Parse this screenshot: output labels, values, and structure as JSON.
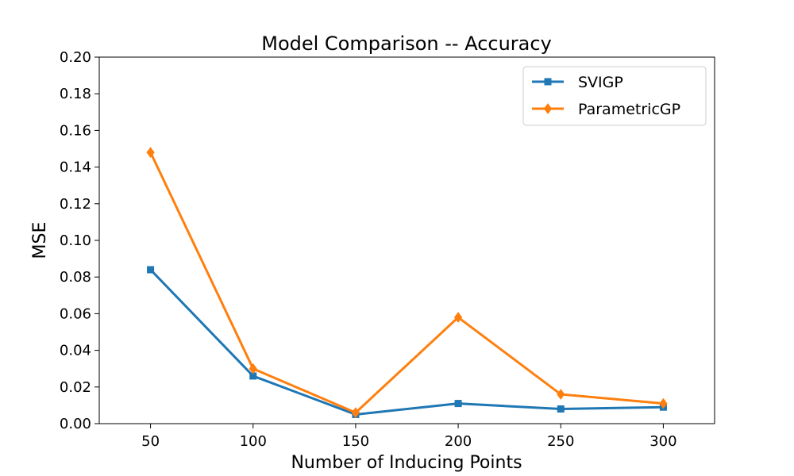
{
  "chart_data": {
    "type": "line",
    "title": "Model Comparison -- Accuracy",
    "xlabel": "Number of Inducing Points",
    "ylabel": "MSE",
    "x": [
      50,
      100,
      150,
      200,
      250,
      300
    ],
    "xticks": [
      "50",
      "100",
      "150",
      "200",
      "250",
      "300"
    ],
    "xlim": [
      25,
      325
    ],
    "ylim": [
      0.0,
      0.2
    ],
    "yticks": [
      "0.00",
      "0.02",
      "0.04",
      "0.06",
      "0.08",
      "0.10",
      "0.12",
      "0.14",
      "0.16",
      "0.18",
      "0.20"
    ],
    "grid": false,
    "legend_position": "top-right",
    "series": [
      {
        "name": "SVIGP",
        "values": [
          0.084,
          0.026,
          0.005,
          0.011,
          0.008,
          0.009
        ],
        "color": "#1f77b4",
        "marker": "square"
      },
      {
        "name": "ParametricGP",
        "values": [
          0.148,
          0.03,
          0.006,
          0.058,
          0.016,
          0.011
        ],
        "color": "#ff7f0e",
        "marker": "diamond"
      }
    ]
  }
}
